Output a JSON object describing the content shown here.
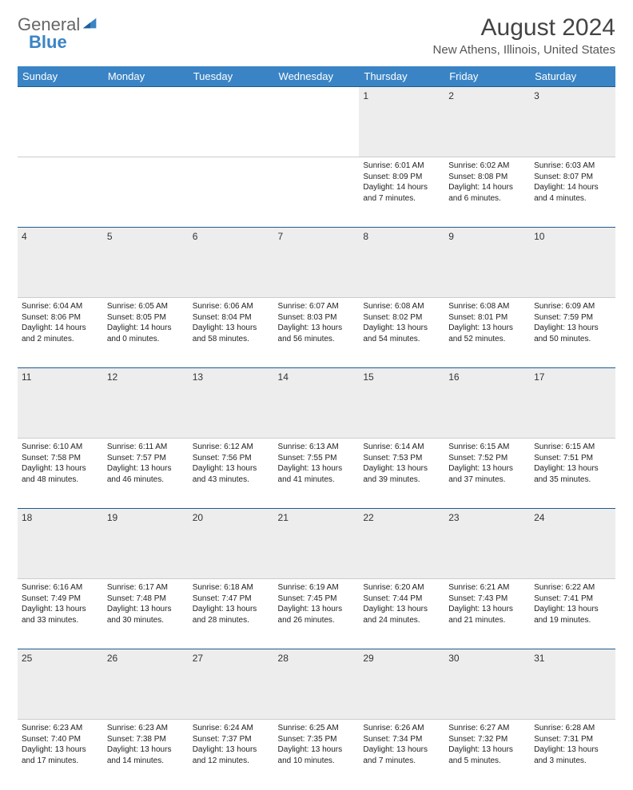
{
  "logo": {
    "word1": "General",
    "word2": "Blue"
  },
  "title": "August 2024",
  "location": "New Athens, Illinois, United States",
  "daysOfWeek": [
    "Sunday",
    "Monday",
    "Tuesday",
    "Wednesday",
    "Thursday",
    "Friday",
    "Saturday"
  ],
  "header_bg": "#3a84c5",
  "daynum_bg": "#ededed",
  "daynum_border_top": "#1e5b8f",
  "weeks": [
    [
      null,
      null,
      null,
      null,
      {
        "n": "1",
        "sr": "Sunrise: 6:01 AM",
        "ss": "Sunset: 8:09 PM",
        "d1": "Daylight: 14 hours",
        "d2": "and 7 minutes."
      },
      {
        "n": "2",
        "sr": "Sunrise: 6:02 AM",
        "ss": "Sunset: 8:08 PM",
        "d1": "Daylight: 14 hours",
        "d2": "and 6 minutes."
      },
      {
        "n": "3",
        "sr": "Sunrise: 6:03 AM",
        "ss": "Sunset: 8:07 PM",
        "d1": "Daylight: 14 hours",
        "d2": "and 4 minutes."
      }
    ],
    [
      {
        "n": "4",
        "sr": "Sunrise: 6:04 AM",
        "ss": "Sunset: 8:06 PM",
        "d1": "Daylight: 14 hours",
        "d2": "and 2 minutes."
      },
      {
        "n": "5",
        "sr": "Sunrise: 6:05 AM",
        "ss": "Sunset: 8:05 PM",
        "d1": "Daylight: 14 hours",
        "d2": "and 0 minutes."
      },
      {
        "n": "6",
        "sr": "Sunrise: 6:06 AM",
        "ss": "Sunset: 8:04 PM",
        "d1": "Daylight: 13 hours",
        "d2": "and 58 minutes."
      },
      {
        "n": "7",
        "sr": "Sunrise: 6:07 AM",
        "ss": "Sunset: 8:03 PM",
        "d1": "Daylight: 13 hours",
        "d2": "and 56 minutes."
      },
      {
        "n": "8",
        "sr": "Sunrise: 6:08 AM",
        "ss": "Sunset: 8:02 PM",
        "d1": "Daylight: 13 hours",
        "d2": "and 54 minutes."
      },
      {
        "n": "9",
        "sr": "Sunrise: 6:08 AM",
        "ss": "Sunset: 8:01 PM",
        "d1": "Daylight: 13 hours",
        "d2": "and 52 minutes."
      },
      {
        "n": "10",
        "sr": "Sunrise: 6:09 AM",
        "ss": "Sunset: 7:59 PM",
        "d1": "Daylight: 13 hours",
        "d2": "and 50 minutes."
      }
    ],
    [
      {
        "n": "11",
        "sr": "Sunrise: 6:10 AM",
        "ss": "Sunset: 7:58 PM",
        "d1": "Daylight: 13 hours",
        "d2": "and 48 minutes."
      },
      {
        "n": "12",
        "sr": "Sunrise: 6:11 AM",
        "ss": "Sunset: 7:57 PM",
        "d1": "Daylight: 13 hours",
        "d2": "and 46 minutes."
      },
      {
        "n": "13",
        "sr": "Sunrise: 6:12 AM",
        "ss": "Sunset: 7:56 PM",
        "d1": "Daylight: 13 hours",
        "d2": "and 43 minutes."
      },
      {
        "n": "14",
        "sr": "Sunrise: 6:13 AM",
        "ss": "Sunset: 7:55 PM",
        "d1": "Daylight: 13 hours",
        "d2": "and 41 minutes."
      },
      {
        "n": "15",
        "sr": "Sunrise: 6:14 AM",
        "ss": "Sunset: 7:53 PM",
        "d1": "Daylight: 13 hours",
        "d2": "and 39 minutes."
      },
      {
        "n": "16",
        "sr": "Sunrise: 6:15 AM",
        "ss": "Sunset: 7:52 PM",
        "d1": "Daylight: 13 hours",
        "d2": "and 37 minutes."
      },
      {
        "n": "17",
        "sr": "Sunrise: 6:15 AM",
        "ss": "Sunset: 7:51 PM",
        "d1": "Daylight: 13 hours",
        "d2": "and 35 minutes."
      }
    ],
    [
      {
        "n": "18",
        "sr": "Sunrise: 6:16 AM",
        "ss": "Sunset: 7:49 PM",
        "d1": "Daylight: 13 hours",
        "d2": "and 33 minutes."
      },
      {
        "n": "19",
        "sr": "Sunrise: 6:17 AM",
        "ss": "Sunset: 7:48 PM",
        "d1": "Daylight: 13 hours",
        "d2": "and 30 minutes."
      },
      {
        "n": "20",
        "sr": "Sunrise: 6:18 AM",
        "ss": "Sunset: 7:47 PM",
        "d1": "Daylight: 13 hours",
        "d2": "and 28 minutes."
      },
      {
        "n": "21",
        "sr": "Sunrise: 6:19 AM",
        "ss": "Sunset: 7:45 PM",
        "d1": "Daylight: 13 hours",
        "d2": "and 26 minutes."
      },
      {
        "n": "22",
        "sr": "Sunrise: 6:20 AM",
        "ss": "Sunset: 7:44 PM",
        "d1": "Daylight: 13 hours",
        "d2": "and 24 minutes."
      },
      {
        "n": "23",
        "sr": "Sunrise: 6:21 AM",
        "ss": "Sunset: 7:43 PM",
        "d1": "Daylight: 13 hours",
        "d2": "and 21 minutes."
      },
      {
        "n": "24",
        "sr": "Sunrise: 6:22 AM",
        "ss": "Sunset: 7:41 PM",
        "d1": "Daylight: 13 hours",
        "d2": "and 19 minutes."
      }
    ],
    [
      {
        "n": "25",
        "sr": "Sunrise: 6:23 AM",
        "ss": "Sunset: 7:40 PM",
        "d1": "Daylight: 13 hours",
        "d2": "and 17 minutes."
      },
      {
        "n": "26",
        "sr": "Sunrise: 6:23 AM",
        "ss": "Sunset: 7:38 PM",
        "d1": "Daylight: 13 hours",
        "d2": "and 14 minutes."
      },
      {
        "n": "27",
        "sr": "Sunrise: 6:24 AM",
        "ss": "Sunset: 7:37 PM",
        "d1": "Daylight: 13 hours",
        "d2": "and 12 minutes."
      },
      {
        "n": "28",
        "sr": "Sunrise: 6:25 AM",
        "ss": "Sunset: 7:35 PM",
        "d1": "Daylight: 13 hours",
        "d2": "and 10 minutes."
      },
      {
        "n": "29",
        "sr": "Sunrise: 6:26 AM",
        "ss": "Sunset: 7:34 PM",
        "d1": "Daylight: 13 hours",
        "d2": "and 7 minutes."
      },
      {
        "n": "30",
        "sr": "Sunrise: 6:27 AM",
        "ss": "Sunset: 7:32 PM",
        "d1": "Daylight: 13 hours",
        "d2": "and 5 minutes."
      },
      {
        "n": "31",
        "sr": "Sunrise: 6:28 AM",
        "ss": "Sunset: 7:31 PM",
        "d1": "Daylight: 13 hours",
        "d2": "and 3 minutes."
      }
    ]
  ]
}
